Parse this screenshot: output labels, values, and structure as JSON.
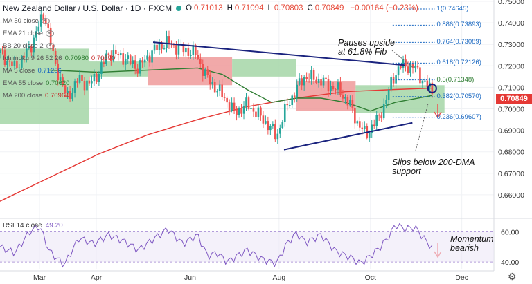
{
  "header": {
    "title": "New Zealand Dollar / U.S. Dollar · 1D · FXCM",
    "ohlc": [
      {
        "k": "O",
        "v": "0.71013"
      },
      {
        "k": "H",
        "v": "0.71094"
      },
      {
        "k": "L",
        "v": "0.70803"
      },
      {
        "k": "C",
        "v": "0.70849"
      },
      {
        "k": "",
        "v": "−0.00164 (−0.23%)"
      }
    ]
  },
  "indicators": [
    {
      "label": "MA 50 close",
      "vals": []
    },
    {
      "label": "EMA 21 close",
      "vals": []
    },
    {
      "label": "BB 20 close 2",
      "vals": []
    },
    {
      "label": "Ichimoku 9 26 52 26",
      "vals": [
        {
          "v": "0.70980",
          "c": "#2e7d32"
        },
        {
          "v": "0.70390",
          "c": "#c62828"
        }
      ]
    },
    {
      "label": "MA 5 close",
      "vals": [
        {
          "v": "0.71256",
          "c": "#1565c0"
        }
      ]
    },
    {
      "label": "EMA 55 close",
      "vals": [
        {
          "v": "0.70620",
          "c": "#2e7d32"
        }
      ]
    },
    {
      "label": "MA 200 close",
      "vals": [
        {
          "v": "0.70964",
          "c": "#c62828"
        }
      ]
    }
  ],
  "rsi": {
    "label": "RSI 14 close",
    "value": "49.20"
  },
  "annotations": {
    "pauses_l1": "Pauses upside",
    "pauses_l2": "at 61.8% Fib",
    "slips_l1": "Slips below 200-DMA",
    "slips_l2": "support",
    "momentum_l1": "Momentum",
    "momentum_l2": "bearish"
  },
  "last_price": "0.70849",
  "colors": {
    "up": "#26a69a",
    "down": "#ef5350",
    "ma200": "#e53935",
    "ema55": "#2e7d32",
    "trend": "#1a237e",
    "fib": "#1565c0",
    "rsi": "#7e57c2",
    "cloud_green": "#a5d6a7",
    "cloud_red": "#ef9a9a"
  },
  "chart_data": {
    "type": "candlestick",
    "ylim": [
      0.65,
      0.75
    ],
    "y_ticks": [
      "0.75000",
      "0.74000",
      "0.73000",
      "0.72000",
      "0.71000",
      "0.70000",
      "0.69000",
      "0.68000",
      "0.67000",
      "0.66000"
    ],
    "x_ticks": [
      "Mar",
      "Apr",
      "Jun",
      "Aug",
      "Oct",
      "Dec"
    ],
    "x_tick_positions": [
      0.08,
      0.195,
      0.385,
      0.565,
      0.75,
      0.935
    ],
    "price_path": [
      [
        0,
        0.726
      ],
      [
        0.03,
        0.719
      ],
      [
        0.06,
        0.728
      ],
      [
        0.09,
        0.745
      ],
      [
        0.11,
        0.722
      ],
      [
        0.135,
        0.705
      ],
      [
        0.16,
        0.714
      ],
      [
        0.18,
        0.711
      ],
      [
        0.2,
        0.717
      ],
      [
        0.22,
        0.726
      ],
      [
        0.25,
        0.724
      ],
      [
        0.28,
        0.719
      ],
      [
        0.31,
        0.727
      ],
      [
        0.335,
        0.731
      ],
      [
        0.365,
        0.728
      ],
      [
        0.395,
        0.726
      ],
      [
        0.42,
        0.714
      ],
      [
        0.44,
        0.709
      ],
      [
        0.455,
        0.705
      ],
      [
        0.475,
        0.698
      ],
      [
        0.5,
        0.702
      ],
      [
        0.52,
        0.698
      ],
      [
        0.545,
        0.692
      ],
      [
        0.56,
        0.687
      ],
      [
        0.58,
        0.701
      ],
      [
        0.6,
        0.709
      ],
      [
        0.615,
        0.715
      ],
      [
        0.64,
        0.714
      ],
      [
        0.665,
        0.711
      ],
      [
        0.69,
        0.708
      ],
      [
        0.71,
        0.701
      ],
      [
        0.725,
        0.693
      ],
      [
        0.74,
        0.688
      ],
      [
        0.75,
        0.691
      ],
      [
        0.765,
        0.695
      ],
      [
        0.78,
        0.703
      ],
      [
        0.795,
        0.714
      ],
      [
        0.81,
        0.72
      ],
      [
        0.825,
        0.72
      ],
      [
        0.84,
        0.719
      ],
      [
        0.86,
        0.712
      ],
      [
        0.875,
        0.708
      ]
    ],
    "ma200_path": [
      [
        0,
        0.657
      ],
      [
        0.1,
        0.668
      ],
      [
        0.2,
        0.679
      ],
      [
        0.3,
        0.688
      ],
      [
        0.4,
        0.695
      ],
      [
        0.5,
        0.701
      ],
      [
        0.6,
        0.705
      ],
      [
        0.7,
        0.708
      ],
      [
        0.8,
        0.709
      ],
      [
        0.875,
        0.7096
      ]
    ],
    "ema55_path": [
      [
        0.1,
        0.718
      ],
      [
        0.2,
        0.717
      ],
      [
        0.3,
        0.718
      ],
      [
        0.4,
        0.719
      ],
      [
        0.45,
        0.716
      ],
      [
        0.5,
        0.709
      ],
      [
        0.55,
        0.703
      ],
      [
        0.6,
        0.705
      ],
      [
        0.65,
        0.705
      ],
      [
        0.7,
        0.703
      ],
      [
        0.75,
        0.699
      ],
      [
        0.8,
        0.703
      ],
      [
        0.875,
        0.7062
      ]
    ],
    "cloud": [
      {
        "from": 0.0,
        "to": 0.18,
        "top": 0.728,
        "bot": 0.693,
        "color": "green"
      },
      {
        "from": 0.18,
        "to": 0.3,
        "top": 0.722,
        "bot": 0.715,
        "color": "green"
      },
      {
        "from": 0.3,
        "to": 0.47,
        "top": 0.724,
        "bot": 0.711,
        "color": "red"
      },
      {
        "from": 0.47,
        "to": 0.6,
        "top": 0.723,
        "bot": 0.715,
        "color": "green"
      },
      {
        "from": 0.6,
        "to": 0.72,
        "top": 0.713,
        "bot": 0.699,
        "color": "red"
      },
      {
        "from": 0.72,
        "to": 0.9,
        "top": 0.711,
        "bot": 0.698,
        "color": "green"
      }
    ],
    "trendlines": [
      {
        "from": [
          0.31,
          0.731
        ],
        "to": [
          0.82,
          0.7203
        ]
      },
      {
        "from": [
          0.575,
          0.681
        ],
        "to": [
          0.835,
          0.6935
        ]
      }
    ],
    "fib_levels": [
      {
        "label": "1(0.74645)",
        "value": 0.74645
      },
      {
        "label": "0.886(0.73893)",
        "value": 0.73893
      },
      {
        "label": "0.764(0.73089)",
        "value": 0.73089
      },
      {
        "label": "0.618(0.72126)",
        "value": 0.72126
      },
      {
        "label": "0.5(0.71348)",
        "value": 0.71348
      },
      {
        "label": "0.382(0.70570)",
        "value": 0.7057
      },
      {
        "label": "0.236(0.69607)",
        "value": 0.69607
      }
    ],
    "rsi_ylim": [
      35,
      68
    ],
    "rsi_ticks": [
      "60.00",
      "40.00"
    ],
    "rsi_path": [
      [
        0,
        50
      ],
      [
        0.03,
        46
      ],
      [
        0.06,
        60
      ],
      [
        0.08,
        64
      ],
      [
        0.1,
        47
      ],
      [
        0.13,
        38
      ],
      [
        0.16,
        56
      ],
      [
        0.19,
        52
      ],
      [
        0.22,
        58
      ],
      [
        0.25,
        54
      ],
      [
        0.28,
        48
      ],
      [
        0.31,
        55
      ],
      [
        0.34,
        62
      ],
      [
        0.37,
        52
      ],
      [
        0.4,
        58
      ],
      [
        0.42,
        44
      ],
      [
        0.44,
        46
      ],
      [
        0.46,
        40
      ],
      [
        0.5,
        48
      ],
      [
        0.53,
        42
      ],
      [
        0.56,
        39
      ],
      [
        0.58,
        52
      ],
      [
        0.6,
        59
      ],
      [
        0.62,
        53
      ],
      [
        0.65,
        58
      ],
      [
        0.68,
        47
      ],
      [
        0.71,
        43
      ],
      [
        0.73,
        39
      ],
      [
        0.75,
        44
      ],
      [
        0.77,
        50
      ],
      [
        0.79,
        58
      ],
      [
        0.8,
        65
      ],
      [
        0.82,
        62
      ],
      [
        0.84,
        63
      ],
      [
        0.86,
        55
      ],
      [
        0.875,
        49.2
      ]
    ]
  }
}
